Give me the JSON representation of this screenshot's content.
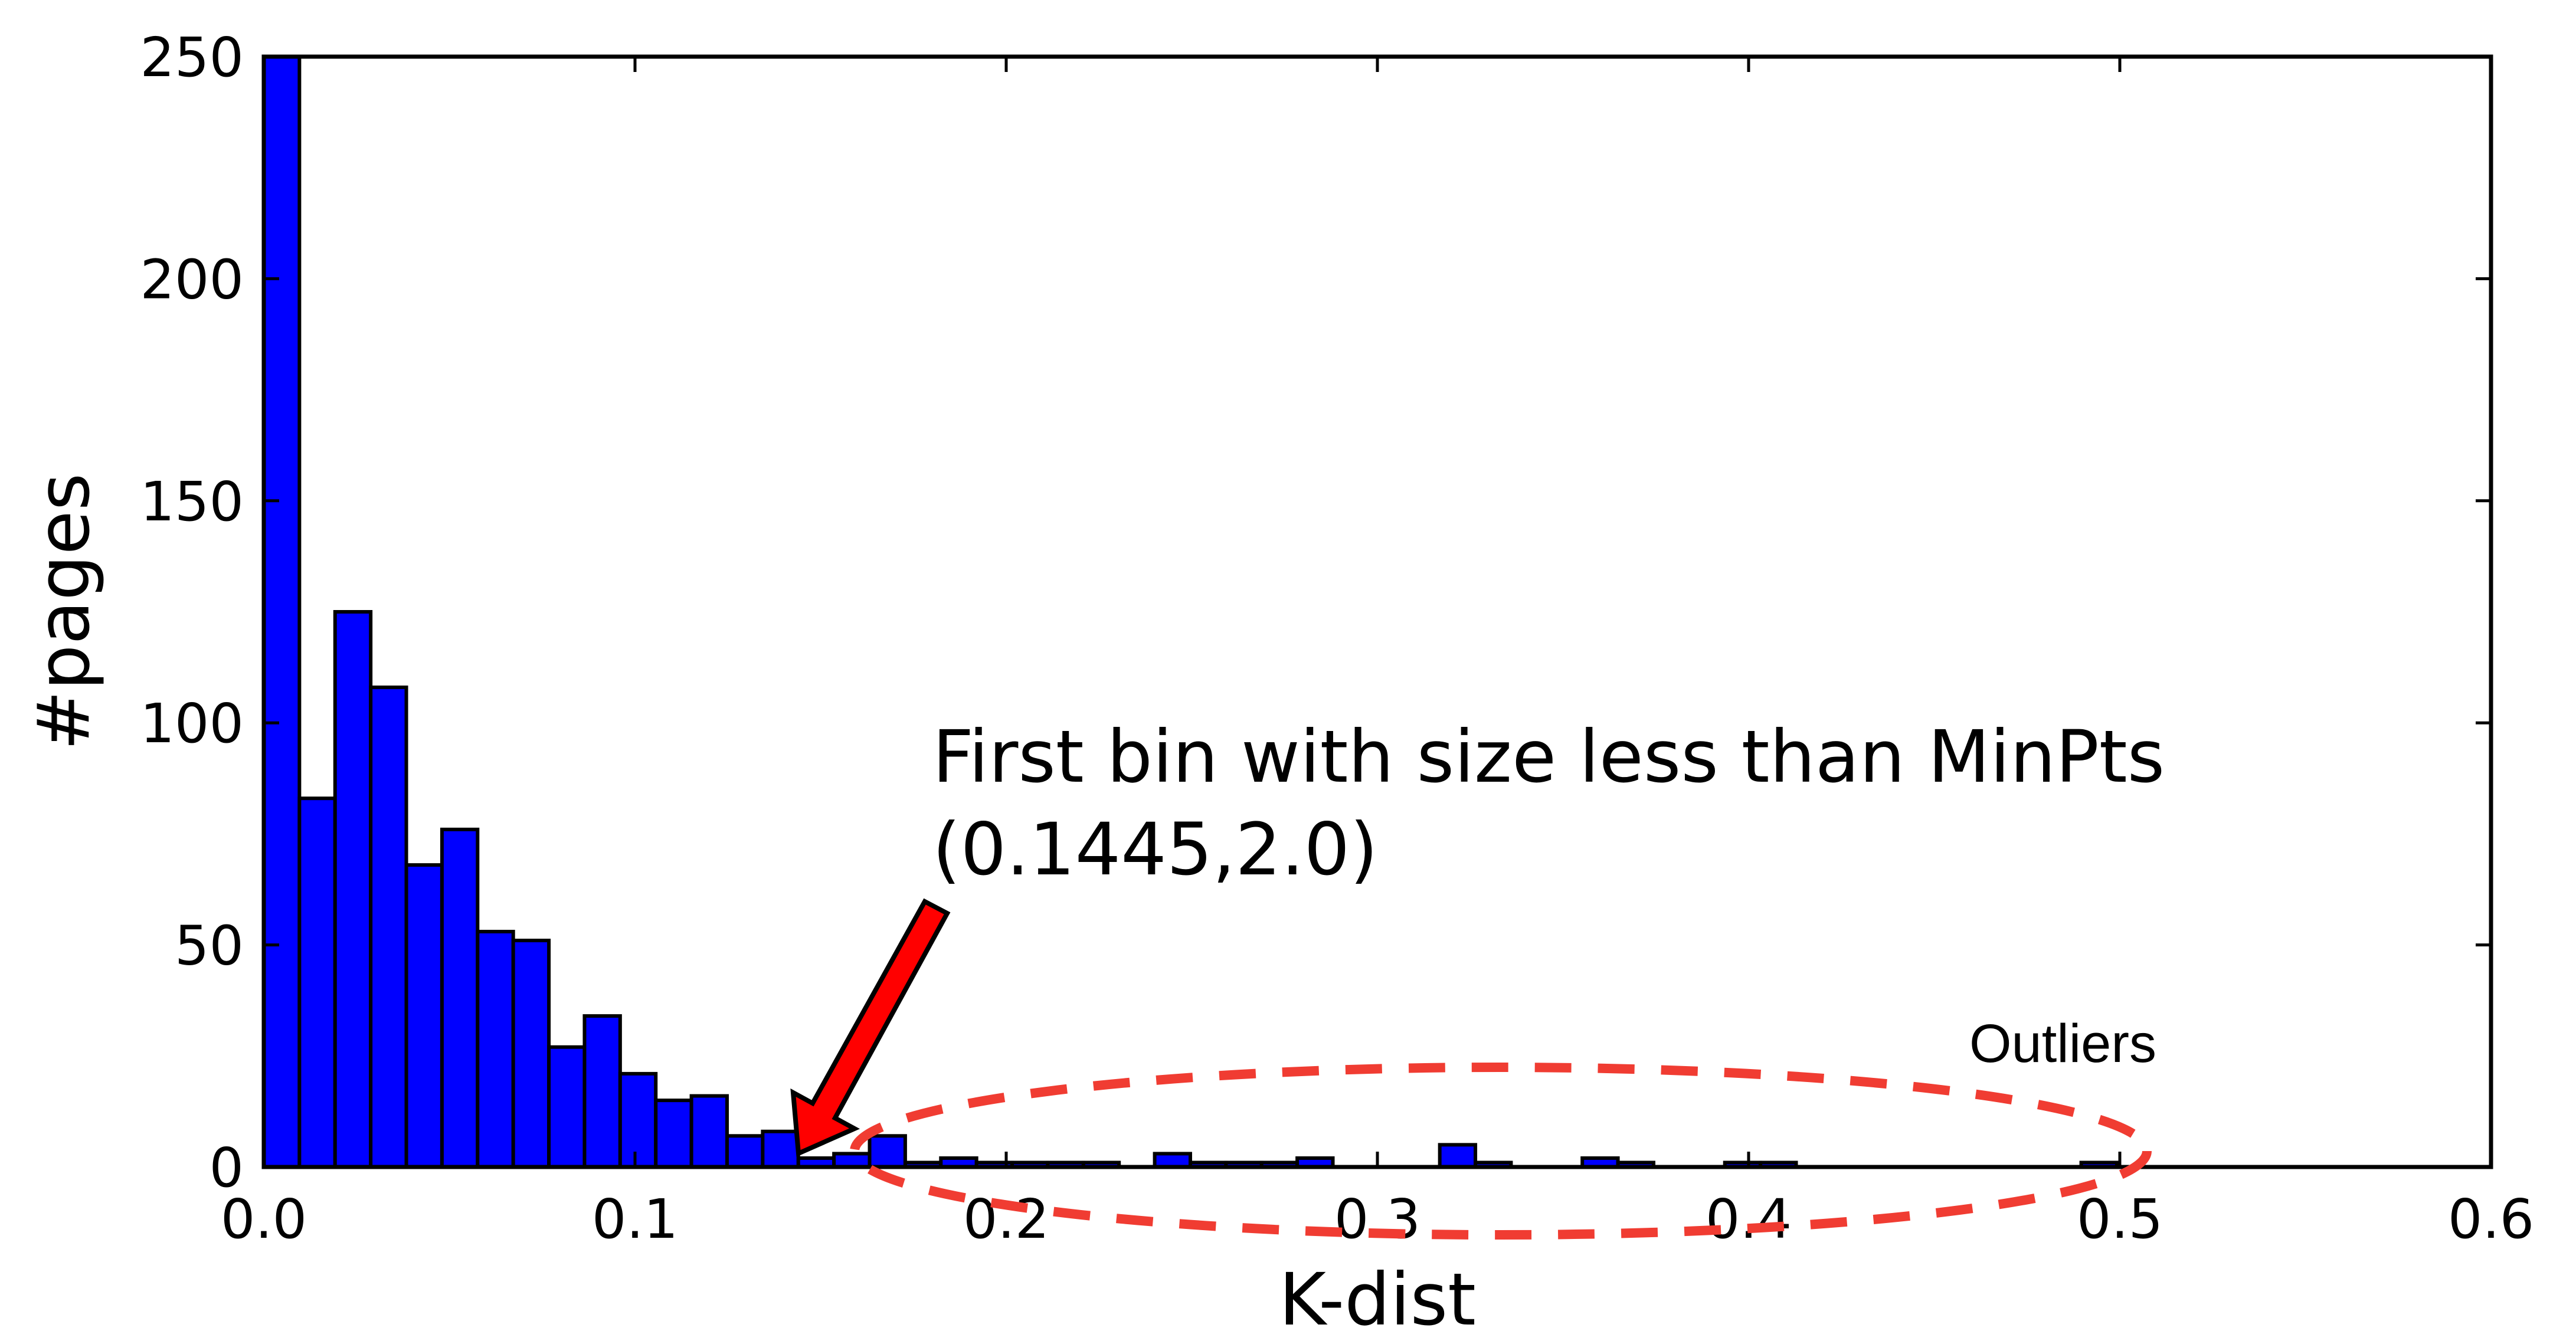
{
  "chart_data": {
    "type": "bar",
    "title": "",
    "xlabel": "K-dist",
    "ylabel": "#pages",
    "xlim": [
      0.0,
      0.6
    ],
    "ylim": [
      0,
      250
    ],
    "bin_width": 0.0096,
    "bar_color": "#0000ff",
    "x_ticks": [
      "0.0",
      "0.1",
      "0.2",
      "0.3",
      "0.4",
      "0.5",
      "0.6"
    ],
    "y_ticks": [
      "0",
      "50",
      "100",
      "150",
      "200",
      "250"
    ],
    "bins_start": [
      0.0,
      0.0096,
      0.0192,
      0.0288,
      0.0384,
      0.048,
      0.0576,
      0.0672,
      0.0768,
      0.0864,
      0.096,
      0.1056,
      0.1152,
      0.1248,
      0.1344,
      0.144,
      0.1536,
      0.1632,
      0.1728,
      0.1824,
      0.192,
      0.2016,
      0.2112,
      0.2208,
      0.2304,
      0.24,
      0.2496,
      0.2592,
      0.2688,
      0.2784,
      0.288,
      0.2976,
      0.3072,
      0.3168,
      0.3264,
      0.336,
      0.3456,
      0.3552,
      0.3648,
      0.3744,
      0.384,
      0.3936,
      0.4032,
      0.4128,
      0.4224,
      0.432,
      0.4416,
      0.4512,
      0.4608,
      0.4704,
      0.48,
      0.4896
    ],
    "values": [
      250,
      83,
      125,
      108,
      68,
      76,
      53,
      51,
      27,
      34,
      21,
      15,
      16,
      7,
      8,
      2,
      3,
      7,
      1,
      2,
      1,
      1,
      1,
      1,
      0,
      3,
      1,
      1,
      1,
      2,
      0,
      0,
      0,
      5,
      1,
      0,
      0,
      2,
      1,
      0,
      0,
      1,
      1,
      0,
      0,
      0,
      0,
      0,
      0,
      0,
      0,
      1
    ],
    "annotations": {
      "arrow_label_line1": "First bin with size less than MinPts",
      "arrow_label_line2": "(0.1445,2.0)",
      "arrow_target": [
        0.1445,
        2.0
      ],
      "arrow_color": "#ff0000",
      "outlier_label": "Outliers",
      "outlier_ellipse_color": "#f03c32"
    }
  }
}
